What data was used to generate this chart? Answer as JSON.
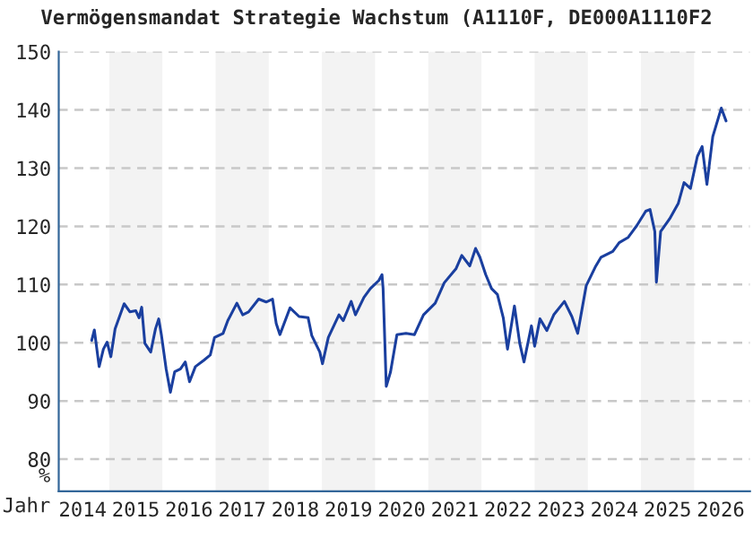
{
  "chart_data": {
    "type": "line",
    "title": "Vermögensmandat Strategie Wachstum (A1110F, DE000A1110F2",
    "xlabel": "Jahr",
    "ylabel": "%",
    "x": [
      2014.67,
      2014.72,
      2014.81,
      2014.89,
      2014.96,
      2015.03,
      2015.11,
      2015.28,
      2015.39,
      2015.5,
      2015.56,
      2015.61,
      2015.67,
      2015.78,
      2015.87,
      2015.93,
      2015.98,
      2016.07,
      2016.15,
      2016.23,
      2016.34,
      2016.43,
      2016.51,
      2016.62,
      2016.78,
      2016.9,
      2016.98,
      2017.14,
      2017.23,
      2017.4,
      2017.51,
      2017.62,
      2017.81,
      2017.95,
      2018.07,
      2018.14,
      2018.21,
      2018.4,
      2018.57,
      2018.74,
      2018.81,
      2018.96,
      2019.01,
      2019.12,
      2019.32,
      2019.4,
      2019.55,
      2019.63,
      2019.79,
      2019.91,
      2020.07,
      2020.13,
      2020.15,
      2020.21,
      2020.29,
      2020.41,
      2020.58,
      2020.74,
      2020.91,
      2021.13,
      2021.3,
      2021.52,
      2021.63,
      2021.78,
      2021.89,
      2021.97,
      2022.08,
      2022.19,
      2022.3,
      2022.41,
      2022.49,
      2022.62,
      2022.72,
      2022.8,
      2022.94,
      2023.0,
      2023.1,
      2023.23,
      2023.36,
      2023.56,
      2023.7,
      2023.81,
      2023.97,
      2024.14,
      2024.25,
      2024.36,
      2024.47,
      2024.59,
      2024.76,
      2024.92,
      2025.09,
      2025.17,
      2025.26,
      2025.29,
      2025.37,
      2025.54,
      2025.7,
      2025.81,
      2025.93,
      2026.06,
      2026.15,
      2026.24,
      2026.35,
      2026.51,
      2026.6
    ],
    "series": [
      {
        "color": "#1a3f9f",
        "values": [
          100.4,
          102.2,
          95.9,
          98.9,
          100.1,
          97.6,
          102.4,
          106.7,
          105.3,
          105.5,
          104.3,
          106.1,
          99.9,
          98.4,
          102.4,
          104.1,
          101.4,
          95.5,
          91.5,
          95.0,
          95.5,
          96.7,
          93.3,
          95.9,
          97.0,
          97.9,
          100.9,
          101.6,
          103.8,
          106.8,
          104.8,
          105.3,
          107.5,
          107.0,
          107.5,
          103.3,
          101.4,
          106.0,
          104.5,
          104.3,
          101.2,
          98.4,
          96.4,
          100.9,
          104.8,
          103.8,
          107.1,
          104.8,
          107.8,
          109.3,
          110.7,
          111.7,
          109.3,
          92.5,
          95.0,
          101.4,
          101.6,
          101.4,
          104.8,
          106.8,
          110.3,
          112.7,
          115.0,
          113.2,
          116.2,
          114.7,
          111.7,
          109.3,
          108.3,
          104.3,
          98.9,
          106.3,
          99.9,
          96.7,
          102.9,
          99.4,
          104.1,
          102.1,
          104.8,
          107.1,
          104.5,
          101.6,
          109.8,
          113.0,
          114.7,
          115.2,
          115.7,
          117.2,
          118.1,
          120.1,
          122.6,
          122.9,
          119.1,
          110.4,
          119.1,
          121.3,
          123.9,
          127.5,
          126.5,
          132.0,
          133.7,
          127.2,
          135.4,
          140.3,
          138.1
        ]
      }
    ],
    "xlim": [
      2014.05,
      2027.05
    ],
    "xticks": [
      {
        "value": 2014.5,
        "label": "2014"
      },
      {
        "value": 2015.5,
        "label": "2015"
      },
      {
        "value": 2016.5,
        "label": "2016"
      },
      {
        "value": 2017.5,
        "label": "2017"
      },
      {
        "value": 2018.5,
        "label": "2018"
      },
      {
        "value": 2019.5,
        "label": "2019"
      },
      {
        "value": 2020.5,
        "label": "2020"
      },
      {
        "value": 2021.5,
        "label": "2021"
      },
      {
        "value": 2022.5,
        "label": "2022"
      },
      {
        "value": 2023.5,
        "label": "2023"
      },
      {
        "value": 2024.5,
        "label": "2024"
      },
      {
        "value": 2025.5,
        "label": "2025"
      },
      {
        "value": 2026.5,
        "label": "2026"
      }
    ],
    "ylim": [
      74.5,
      150
    ],
    "yticks": [
      80,
      90,
      100,
      110,
      120,
      130,
      140,
      150
    ],
    "bands": [
      {
        "axis": "x",
        "from": 2015,
        "to": 2016,
        "color": "#f3f3f3"
      },
      {
        "axis": "x",
        "from": 2017,
        "to": 2018,
        "color": "#f3f3f3"
      },
      {
        "axis": "x",
        "from": 2019,
        "to": 2020,
        "color": "#f3f3f3"
      },
      {
        "axis": "x",
        "from": 2021,
        "to": 2022,
        "color": "#f3f3f3"
      },
      {
        "axis": "x",
        "from": 2023,
        "to": 2024,
        "color": "#f3f3f3"
      },
      {
        "axis": "x",
        "from": 2025,
        "to": 2026,
        "color": "#f3f3f3"
      }
    ],
    "grid": "y",
    "line_style": "solid",
    "legend": false
  }
}
